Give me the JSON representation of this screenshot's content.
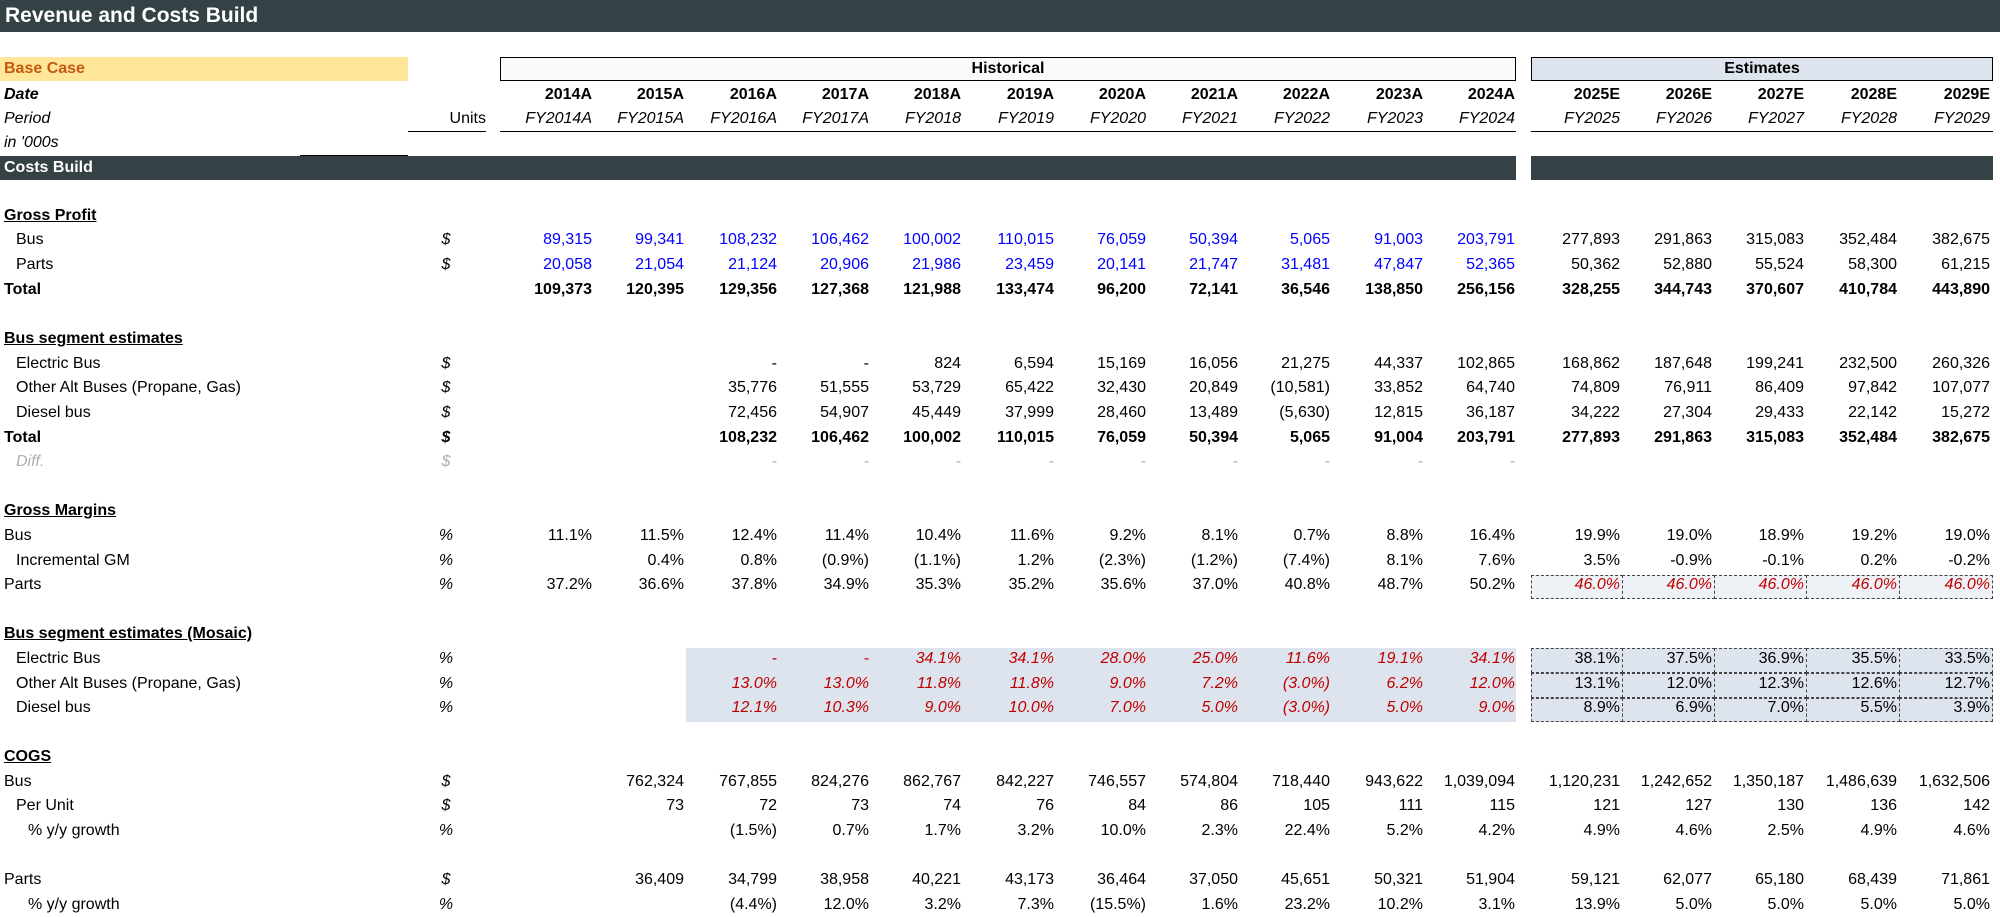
{
  "title": "Revenue and Costs Build",
  "case_label": "Base Case",
  "header": {
    "historical_label": "Historical",
    "estimates_label": "Estimates",
    "date_label": "Date",
    "period_label": "Period",
    "units_label": "Units",
    "scale_label": "in '000s",
    "years": [
      "2014A",
      "2015A",
      "2016A",
      "2017A",
      "2018A",
      "2019A",
      "2020A",
      "2021A",
      "2022A",
      "2023A",
      "2024A",
      "2025E",
      "2026E",
      "2027E",
      "2028E",
      "2029E"
    ],
    "periods": [
      "FY2014A",
      "FY2015A",
      "FY2016A",
      "FY2017A",
      "FY2018",
      "FY2019",
      "FY2020",
      "FY2021",
      "FY2022",
      "FY2023",
      "FY2024",
      "FY2025",
      "FY2026",
      "FY2027",
      "FY2028",
      "FY2029"
    ]
  },
  "section_title": "Costs Build",
  "rows": [
    {
      "label": "Gross Profit",
      "style": "u",
      "y": 216
    },
    {
      "label": "Bus",
      "indent": 1,
      "unit": "$",
      "y": 240,
      "blue_hist": true,
      "values": [
        "89,315",
        "99,341",
        "108,232",
        "106,462",
        "100,002",
        "110,015",
        "76,059",
        "50,394",
        "5,065",
        "91,003",
        "203,791",
        "277,893",
        "291,863",
        "315,083",
        "352,484",
        "382,675"
      ]
    },
    {
      "label": "Parts",
      "indent": 1,
      "unit": "$",
      "y": 265,
      "blue_hist": true,
      "values": [
        "20,058",
        "21,054",
        "21,124",
        "20,906",
        "21,986",
        "23,459",
        "20,141",
        "21,747",
        "31,481",
        "47,847",
        "52,365",
        "50,362",
        "52,880",
        "55,524",
        "58,300",
        "61,215"
      ]
    },
    {
      "label": "Total",
      "style": "b",
      "y": 290,
      "values": [
        "109,373",
        "120,395",
        "129,356",
        "127,368",
        "121,988",
        "133,474",
        "96,200",
        "72,141",
        "36,546",
        "138,850",
        "256,156",
        "328,255",
        "344,743",
        "370,607",
        "410,784",
        "443,890"
      ]
    },
    {
      "label": "Bus segment estimates",
      "style": "u",
      "y": 339
    },
    {
      "label": "Electric Bus",
      "indent": 1,
      "unit": "$",
      "y": 364,
      "values": [
        "",
        "",
        "-",
        "-",
        "824",
        "6,594",
        "15,169",
        "16,056",
        "21,275",
        "44,337",
        "102,865",
        "168,862",
        "187,648",
        "199,241",
        "232,500",
        "260,326"
      ]
    },
    {
      "label": "Other Alt Buses (Propane, Gas)",
      "indent": 1,
      "unit": "$",
      "y": 388,
      "values": [
        "",
        "",
        "35,776",
        "51,555",
        "53,729",
        "65,422",
        "32,430",
        "20,849",
        "(10,581)",
        "33,852",
        "64,740",
        "74,809",
        "76,911",
        "86,409",
        "97,842",
        "107,077"
      ]
    },
    {
      "label": "Diesel bus",
      "indent": 1,
      "unit": "$",
      "y": 413,
      "values": [
        "",
        "",
        "72,456",
        "54,907",
        "45,449",
        "37,999",
        "28,460",
        "13,489",
        "(5,630)",
        "12,815",
        "36,187",
        "34,222",
        "27,304",
        "29,433",
        "22,142",
        "15,272"
      ]
    },
    {
      "label": "Total",
      "style": "b",
      "unit": "$",
      "y": 438,
      "values": [
        "",
        "",
        "108,232",
        "106,462",
        "100,002",
        "110,015",
        "76,059",
        "50,394",
        "5,065",
        "91,004",
        "203,791",
        "277,893",
        "291,863",
        "315,083",
        "352,484",
        "382,675"
      ]
    },
    {
      "label": "Diff.",
      "style": "gray",
      "indent": 1,
      "unit": "$",
      "y": 462,
      "values": [
        "",
        "",
        "-",
        "-",
        "-",
        "-",
        "-",
        "-",
        "-",
        "-",
        "-",
        "",
        "",
        "",
        "",
        ""
      ]
    },
    {
      "label": "Gross Margins",
      "style": "u",
      "y": 511
    },
    {
      "label": "Bus",
      "unit": "%",
      "y": 536,
      "values": [
        "11.1%",
        "11.5%",
        "12.4%",
        "11.4%",
        "10.4%",
        "11.6%",
        "9.2%",
        "8.1%",
        "0.7%",
        "8.8%",
        "16.4%",
        "19.9%",
        "19.0%",
        "18.9%",
        "19.2%",
        "19.0%"
      ]
    },
    {
      "label": "Incremental GM",
      "indent": 1,
      "unit": "%",
      "y": 561,
      "values": [
        "",
        "0.4%",
        "0.8%",
        "(0.9%)",
        "(1.1%)",
        "1.2%",
        "(2.3%)",
        "(1.2%)",
        "(7.4%)",
        "8.1%",
        "7.6%",
        "3.5%",
        "-0.9%",
        "-0.1%",
        "0.2%",
        "-0.2%"
      ]
    },
    {
      "label": "Parts",
      "unit": "%",
      "y": 585,
      "red_est": true,
      "values": [
        "37.2%",
        "36.6%",
        "37.8%",
        "34.9%",
        "35.3%",
        "35.2%",
        "35.6%",
        "37.0%",
        "40.8%",
        "48.7%",
        "50.2%",
        "46.0%",
        "46.0%",
        "46.0%",
        "46.0%",
        "46.0%"
      ]
    },
    {
      "label": "Bus segment estimates (Mosaic)",
      "style": "u",
      "y": 634
    },
    {
      "label": "Electric Bus",
      "indent": 1,
      "unit": "%",
      "y": 659,
      "red_hist": true,
      "values": [
        "",
        "",
        "-",
        "-",
        "34.1%",
        "34.1%",
        "28.0%",
        "25.0%",
        "11.6%",
        "19.1%",
        "34.1%",
        "38.1%",
        "37.5%",
        "36.9%",
        "35.5%",
        "33.5%"
      ]
    },
    {
      "label": "Other Alt Buses (Propane, Gas)",
      "indent": 1,
      "unit": "%",
      "y": 684,
      "red_hist": true,
      "values": [
        "",
        "",
        "13.0%",
        "13.0%",
        "11.8%",
        "11.8%",
        "9.0%",
        "7.2%",
        "(3.0%)",
        "6.2%",
        "12.0%",
        "13.1%",
        "12.0%",
        "12.3%",
        "12.6%",
        "12.7%"
      ]
    },
    {
      "label": "Diesel bus",
      "indent": 1,
      "unit": "%",
      "y": 708,
      "red_hist": true,
      "values": [
        "",
        "",
        "12.1%",
        "10.3%",
        "9.0%",
        "10.0%",
        "7.0%",
        "5.0%",
        "(3.0%)",
        "5.0%",
        "9.0%",
        "8.9%",
        "6.9%",
        "7.0%",
        "5.5%",
        "3.9%"
      ]
    },
    {
      "label": "COGS",
      "style": "u",
      "y": 757
    },
    {
      "label": "Bus",
      "unit": "$",
      "y": 782,
      "values": [
        "",
        "762,324",
        "767,855",
        "824,276",
        "862,767",
        "842,227",
        "746,557",
        "574,804",
        "718,440",
        "943,622",
        "1,039,094",
        "1,120,231",
        "1,242,652",
        "1,350,187",
        "1,486,639",
        "1,632,506"
      ]
    },
    {
      "label": "Per Unit",
      "indent": 1,
      "unit": "$",
      "y": 806,
      "values": [
        "",
        "73",
        "72",
        "73",
        "74",
        "76",
        "84",
        "86",
        "105",
        "111",
        "115",
        "121",
        "127",
        "130",
        "136",
        "142"
      ]
    },
    {
      "label": "% y/y growth",
      "indent": 2,
      "unit": "%",
      "y": 831,
      "values": [
        "",
        "",
        "(1.5%)",
        "0.7%",
        "1.7%",
        "3.2%",
        "10.0%",
        "2.3%",
        "22.4%",
        "5.2%",
        "4.2%",
        "4.9%",
        "4.6%",
        "2.5%",
        "4.9%",
        "4.6%"
      ]
    },
    {
      "label": "Parts",
      "unit": "$",
      "y": 880,
      "values": [
        "",
        "36,409",
        "34,799",
        "38,958",
        "40,221",
        "43,173",
        "36,464",
        "37,050",
        "45,651",
        "50,321",
        "51,904",
        "59,121",
        "62,077",
        "65,180",
        "68,439",
        "71,861"
      ]
    },
    {
      "label": "% y/y growth",
      "indent": 2,
      "unit": "%",
      "y": 905,
      "values": [
        "",
        "",
        "(4.4%)",
        "12.0%",
        "3.2%",
        "7.3%",
        "(15.5%)",
        "1.6%",
        "23.2%",
        "10.2%",
        "3.1%",
        "13.9%",
        "5.0%",
        "5.0%",
        "5.0%",
        "5.0%"
      ]
    }
  ]
}
